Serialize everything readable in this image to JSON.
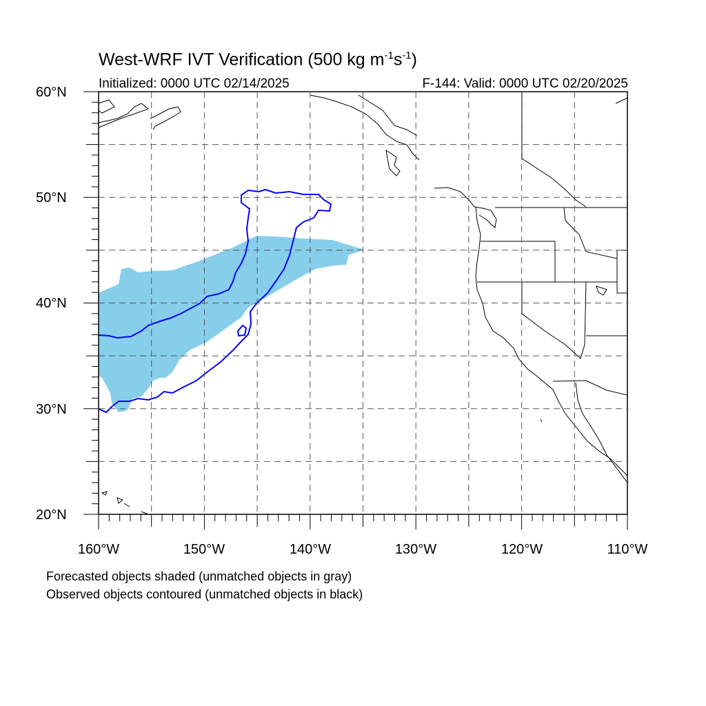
{
  "title": {
    "main": "West-WRF IVT Verification (500 kg m",
    "exp1": "-1",
    "mid": "s",
    "exp2": "-1",
    "end": ")"
  },
  "subtitle": {
    "initialized": "Initialized: 0000 UTC 02/14/2025",
    "valid": "F-144: Valid: 0000 UTC 02/20/2025"
  },
  "axes": {
    "lat_labels": [
      "60°N",
      "50°N",
      "40°N",
      "30°N",
      "20°N"
    ],
    "lon_labels": [
      "160°W",
      "150°W",
      "140°W",
      "130°W",
      "120°W",
      "110°W"
    ],
    "lat_range": [
      20,
      60
    ],
    "lon_range": [
      -160,
      -110
    ],
    "grid": "dashed, every 5 degrees"
  },
  "legend": {
    "line1": "Forecasted objects shaded (unmatched objects in gray)",
    "line2": "Observed objects contoured (unmatched objects in black)"
  },
  "colors": {
    "forecast_fill": "#87CEEB",
    "observed_contour": "#0000FF",
    "coastline": "#000000",
    "grid": "#555555"
  }
}
